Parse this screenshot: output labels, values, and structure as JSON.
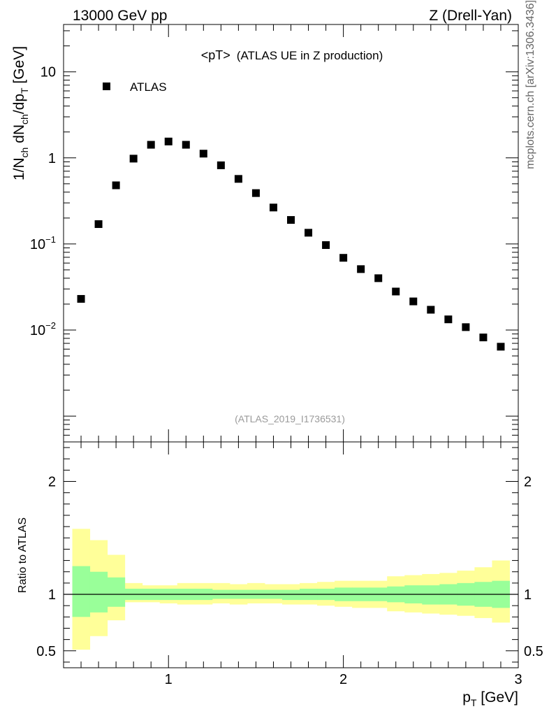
{
  "header": {
    "left": "13000 GeV pp",
    "right": "Z (Drell-Yan)"
  },
  "side_label": "mcplots.cern.ch [arXiv:1306.3436]",
  "chart_data": [
    {
      "type": "scatter",
      "title": "<pT>",
      "subtitle": "(ATLAS UE in Z production)",
      "analysis_label": "(ATLAS_2019_I1736531)",
      "xlim": [
        0.4,
        3.0
      ],
      "ylim_log10": [
        -3.3,
        1.55
      ],
      "yscale": "log",
      "ylabel": {
        "base": "1/N",
        "sub1": "ch",
        "mid": " dN",
        "sub2": "ch",
        "tail": "/dp",
        "sub3": "T",
        "unit": " [GeV]"
      },
      "ytick_labels": [
        {
          "value": 10,
          "base": "10",
          "exp": ""
        },
        {
          "value": 1,
          "base": "1",
          "exp": ""
        },
        {
          "value": 0.1,
          "base": "10",
          "exp": "−1"
        },
        {
          "value": 0.01,
          "base": "10",
          "exp": "−2"
        }
      ],
      "legend": {
        "placement": "top-left",
        "entries": [
          "ATLAS"
        ]
      },
      "series": [
        {
          "name": "ATLAS",
          "x": [
            0.5,
            0.6,
            0.7,
            0.8,
            0.9,
            1.0,
            1.1,
            1.2,
            1.3,
            1.4,
            1.5,
            1.6,
            1.7,
            1.8,
            1.9,
            2.0,
            2.1,
            2.2,
            2.3,
            2.4,
            2.5,
            2.6,
            2.7,
            2.8,
            2.9
          ],
          "y": [
            0.023,
            0.17,
            0.48,
            0.98,
            1.42,
            1.55,
            1.42,
            1.12,
            0.82,
            0.57,
            0.39,
            0.265,
            0.19,
            0.135,
            0.097,
            0.069,
            0.051,
            0.04,
            0.028,
            0.0215,
            0.0172,
            0.0133,
            0.0108,
            0.0082,
            0.0064
          ]
        }
      ]
    },
    {
      "type": "area",
      "ylabel": "Ratio to ATLAS",
      "xlabel": {
        "base": "p",
        "sub": "T",
        "unit": " [GeV]"
      },
      "xlim": [
        0.4,
        3.0
      ],
      "ylim": [
        0.35,
        2.35
      ],
      "xtick_labels": [
        "1",
        "2",
        "3"
      ],
      "ytick_labels": [
        "2",
        "1",
        "0.5"
      ],
      "reference_line": 1.0,
      "bin_edges": [
        0.45,
        0.55,
        0.65,
        0.75,
        0.85,
        0.95,
        1.05,
        1.15,
        1.25,
        1.35,
        1.45,
        1.55,
        1.65,
        1.75,
        1.85,
        1.95,
        2.05,
        2.15,
        2.25,
        2.35,
        2.45,
        2.55,
        2.65,
        2.75,
        2.85,
        2.95
      ],
      "bands": {
        "yellow": {
          "color": "#ffff99",
          "low": [
            0.51,
            0.63,
            0.77,
            0.93,
            0.93,
            0.92,
            0.91,
            0.91,
            0.92,
            0.91,
            0.92,
            0.92,
            0.91,
            0.91,
            0.9,
            0.89,
            0.88,
            0.88,
            0.85,
            0.84,
            0.83,
            0.82,
            0.81,
            0.79,
            0.75
          ],
          "high": [
            1.58,
            1.48,
            1.35,
            1.1,
            1.08,
            1.08,
            1.1,
            1.1,
            1.1,
            1.09,
            1.1,
            1.09,
            1.09,
            1.1,
            1.11,
            1.12,
            1.12,
            1.12,
            1.16,
            1.17,
            1.18,
            1.19,
            1.21,
            1.24,
            1.3
          ]
        },
        "green": {
          "color": "#99ff99",
          "low": [
            0.8,
            0.84,
            0.89,
            0.95,
            0.95,
            0.95,
            0.95,
            0.95,
            0.96,
            0.96,
            0.96,
            0.96,
            0.95,
            0.95,
            0.95,
            0.94,
            0.94,
            0.94,
            0.93,
            0.92,
            0.91,
            0.91,
            0.9,
            0.89,
            0.88
          ],
          "high": [
            1.25,
            1.2,
            1.15,
            1.05,
            1.05,
            1.05,
            1.05,
            1.05,
            1.04,
            1.04,
            1.04,
            1.04,
            1.04,
            1.05,
            1.05,
            1.06,
            1.06,
            1.06,
            1.07,
            1.08,
            1.08,
            1.09,
            1.1,
            1.11,
            1.12
          ]
        }
      }
    }
  ]
}
